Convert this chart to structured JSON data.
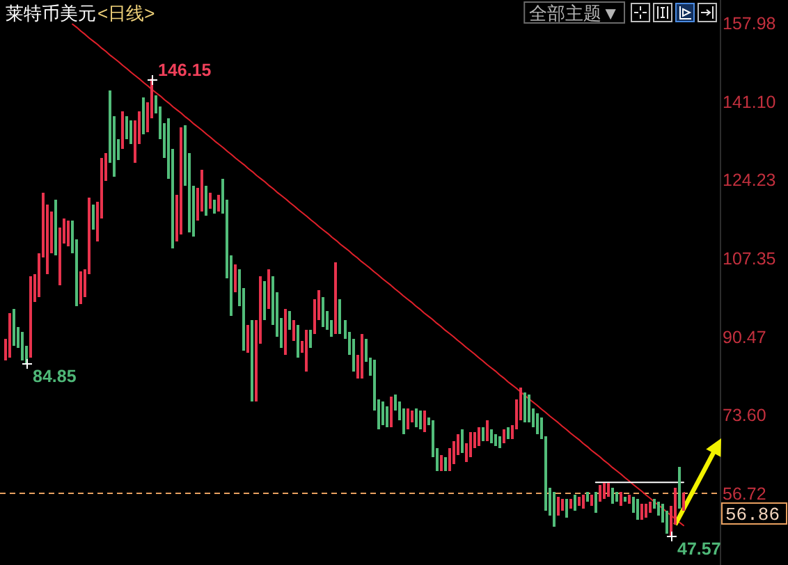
{
  "chart_data": {
    "type": "candlestick",
    "title": "莱特币美元",
    "subtitle": "<日线>",
    "categories": [
      null,
      null,
      null,
      null,
      null,
      null,
      null,
      null,
      null,
      null,
      null,
      null,
      null,
      null,
      null,
      null,
      null,
      null,
      null,
      null,
      null,
      null,
      null,
      null,
      null,
      null,
      null,
      null,
      null,
      null,
      null,
      null,
      null,
      null,
      null,
      null,
      null,
      null,
      null,
      null,
      null,
      null,
      null,
      null,
      null,
      null,
      null,
      null,
      null,
      null,
      null,
      null,
      null,
      null,
      null,
      null,
      null,
      null,
      null,
      null,
      null,
      null,
      null,
      null,
      null,
      null,
      null,
      null,
      null,
      null,
      null,
      null,
      null,
      null,
      null,
      null,
      null,
      null,
      null,
      null,
      null,
      null,
      null,
      null,
      null,
      null,
      null,
      null,
      null,
      null,
      null,
      null,
      null,
      null,
      null,
      null,
      null,
      null,
      null,
      null,
      null,
      null,
      null,
      null,
      null,
      null,
      null,
      null,
      null,
      null,
      null,
      null,
      null,
      null,
      null,
      null,
      null,
      null,
      null,
      null,
      null,
      null,
      null,
      null,
      null,
      null,
      null,
      null,
      null,
      null,
      null,
      null,
      null,
      null,
      null,
      null,
      null,
      null,
      null,
      null,
      null,
      null,
      null,
      null,
      null,
      null,
      null,
      null,
      null,
      null,
      null,
      null,
      null,
      null,
      null,
      null,
      null,
      null,
      null,
      null,
      null,
      null,
      null
    ],
    "ohlc": [
      [
        85.5,
        90.1,
        85.5,
        90.1
      ],
      [
        86,
        95.6,
        86,
        95.6
      ],
      [
        96.6,
        96.6,
        88.6,
        88.6
      ],
      [
        92.6,
        92.6,
        88.1,
        88.1
      ],
      [
        91.6,
        91.6,
        85.5,
        85.5
      ],
      [
        88.6,
        88.6,
        84.85,
        84.85
      ],
      [
        86.1,
        103.6,
        86.1,
        103.6
      ],
      [
        98.1,
        104.1,
        98.1,
        104.1
      ],
      [
        99.1,
        108.6,
        99.1,
        108.6
      ],
      [
        107.6,
        121.6,
        107.6,
        121.6
      ],
      [
        104.1,
        119.1,
        104.1,
        119.1
      ],
      [
        108.6,
        117.6,
        108.6,
        117.6
      ],
      [
        120.1,
        120.1,
        108.1,
        108.1
      ],
      [
        101.6,
        114.1,
        101.6,
        114.1
      ],
      [
        110.6,
        116.1,
        110.6,
        116.1
      ],
      [
        110.1,
        115.6,
        110.1,
        115.6
      ],
      [
        115.6,
        115.6,
        108.6,
        108.6
      ],
      [
        111.6,
        111.6,
        97.1,
        97.1
      ],
      [
        97.6,
        104.6,
        97.6,
        104.6
      ],
      [
        99.1,
        105.1,
        99.1,
        105.1
      ],
      [
        104.1,
        120.6,
        104.1,
        120.6
      ],
      [
        119.1,
        119.1,
        113.6,
        113.6
      ],
      [
        111.1,
        119.6,
        111.1,
        119.6
      ],
      [
        116.1,
        129.1,
        116.1,
        129.1
      ],
      [
        124.1,
        130.1,
        124.1,
        130.1
      ],
      [
        143.6,
        143.6,
        128.1,
        128.1
      ],
      [
        138.1,
        138.1,
        125.1,
        125.1
      ],
      [
        133.1,
        133.1,
        128.6,
        128.6
      ],
      [
        131.1,
        139.1,
        131.1,
        139.1
      ],
      [
        138.1,
        138.1,
        133.1,
        133.1
      ],
      [
        137.1,
        137.1,
        132.1,
        132.1
      ],
      [
        128.1,
        137.1,
        128.1,
        137.1
      ],
      [
        132.1,
        139.1,
        132.1,
        139.1
      ],
      [
        142.1,
        142.1,
        134.1,
        134.1
      ],
      [
        134.6,
        141.1,
        134.6,
        141.1
      ],
      [
        137.6,
        146.15,
        137.6,
        146.15
      ],
      [
        142.6,
        142.6,
        138.6,
        138.6
      ],
      [
        140.1,
        140.1,
        133.1,
        133.1
      ],
      [
        136.6,
        136.6,
        129.1,
        129.1
      ],
      [
        137.6,
        137.6,
        124.6,
        124.6
      ],
      [
        131.1,
        131.1,
        109.6,
        109.6
      ],
      [
        111.1,
        121.1,
        111.1,
        121.1
      ],
      [
        112.6,
        135.6,
        112.6,
        135.6
      ],
      [
        136.1,
        136.1,
        123.1,
        123.1
      ],
      [
        130.1,
        130.1,
        113.1,
        113.1
      ],
      [
        123.1,
        123.1,
        112.1,
        112.1
      ],
      [
        115.6,
        122.6,
        115.6,
        122.6
      ],
      [
        117.6,
        126.6,
        117.6,
        126.6
      ],
      [
        123.1,
        123.1,
        116.6,
        116.6
      ],
      [
        118.1,
        121.6,
        118.1,
        121.6
      ],
      [
        120.1,
        120.1,
        117.1,
        117.1
      ],
      [
        117.6,
        121.1,
        117.6,
        121.1
      ],
      [
        124.6,
        124.6,
        117.1,
        117.1
      ],
      [
        120.1,
        120.1,
        103.1,
        103.1
      ],
      [
        108.1,
        108.1,
        95.1,
        95.1
      ],
      [
        100.1,
        106.1,
        100.1,
        106.1
      ],
      [
        105.1,
        105.1,
        97.1,
        97.1
      ],
      [
        101.1,
        101.1,
        87.6,
        87.6
      ],
      [
        87.1,
        93.1,
        87.1,
        93.1
      ],
      [
        94.1,
        94.1,
        76.6,
        76.6
      ],
      [
        76.6,
        94.1,
        76.6,
        94.1
      ],
      [
        89.1,
        103.6,
        89.1,
        103.6
      ],
      [
        102.6,
        102.6,
        94.1,
        94.1
      ],
      [
        96.6,
        105.1,
        96.6,
        105.1
      ],
      [
        103.6,
        103.6,
        93.1,
        93.1
      ],
      [
        100.1,
        100.1,
        90.6,
        90.6
      ],
      [
        94.6,
        94.6,
        88.1,
        88.1
      ],
      [
        86.6,
        96.6,
        86.6,
        96.6
      ],
      [
        96.1,
        96.1,
        92.1,
        92.1
      ],
      [
        89.6,
        94.1,
        89.6,
        94.1
      ],
      [
        93.1,
        93.1,
        86.1,
        86.1
      ],
      [
        87.1,
        89.6,
        87.1,
        89.6
      ],
      [
        83.1,
        92.1,
        83.1,
        92.1
      ],
      [
        92.1,
        92.1,
        88.1,
        88.1
      ],
      [
        91.1,
        98.6,
        91.1,
        98.6
      ],
      [
        94.1,
        100.6,
        94.1,
        100.6
      ],
      [
        99.1,
        99.1,
        92.6,
        92.6
      ],
      [
        96.1,
        96.1,
        92.1,
        92.1
      ],
      [
        94.1,
        94.1,
        90.6,
        90.6
      ],
      [
        91.1,
        106.6,
        91.1,
        106.6
      ],
      [
        98.6,
        98.6,
        91.1,
        91.1
      ],
      [
        94.1,
        94.1,
        90.1,
        90.1
      ],
      [
        91.6,
        91.6,
        86.6,
        86.6
      ],
      [
        90.1,
        90.1,
        83.1,
        83.1
      ],
      [
        81.6,
        86.6,
        81.6,
        86.6
      ],
      [
        81.6,
        91.1,
        81.6,
        91.1
      ],
      [
        90.1,
        90.1,
        85.1,
        85.1
      ],
      [
        86.1,
        86.1,
        82.1,
        82.1
      ],
      [
        85.6,
        85.6,
        74.6,
        74.6
      ],
      [
        77.1,
        77.1,
        70.6,
        70.6
      ],
      [
        76.6,
        76.6,
        71.6,
        71.6
      ],
      [
        75.6,
        75.6,
        71.1,
        71.1
      ],
      [
        71.1,
        77.6,
        71.1,
        77.6
      ],
      [
        78.1,
        78.1,
        74.6,
        74.6
      ],
      [
        76.6,
        76.6,
        72.6,
        72.6
      ],
      [
        75.1,
        75.1,
        69.6,
        69.6
      ],
      [
        70.6,
        75.1,
        70.6,
        75.1
      ],
      [
        72.1,
        74.6,
        72.1,
        74.6
      ],
      [
        75.1,
        75.1,
        71.1,
        71.1
      ],
      [
        74.6,
        74.6,
        70.6,
        70.6
      ],
      [
        70.1,
        74.6,
        70.1,
        74.6
      ],
      [
        73.1,
        73.1,
        71.6,
        71.6
      ],
      [
        72.6,
        72.6,
        64.6,
        64.6
      ],
      [
        66.6,
        66.6,
        61.6,
        61.6
      ],
      [
        61.6,
        65.1,
        61.6,
        65.1
      ],
      [
        64.6,
        64.6,
        61.6,
        61.6
      ],
      [
        61.6,
        66.6,
        61.6,
        66.6
      ],
      [
        63.1,
        68.1,
        63.1,
        68.1
      ],
      [
        65.1,
        69.6,
        65.1,
        69.6
      ],
      [
        70.6,
        70.6,
        65.6,
        65.6
      ],
      [
        63.6,
        67.6,
        63.6,
        67.6
      ],
      [
        64.6,
        70.1,
        64.6,
        70.1
      ],
      [
        66.6,
        70.1,
        66.6,
        70.1
      ],
      [
        67.1,
        71.1,
        67.1,
        71.1
      ],
      [
        71.1,
        71.1,
        68.1,
        68.1
      ],
      [
        68.1,
        72.6,
        68.1,
        72.6
      ],
      [
        70.6,
        70.6,
        67.6,
        67.6
      ],
      [
        69.6,
        69.6,
        67.1,
        67.1
      ],
      [
        69.1,
        69.1,
        66.6,
        66.6
      ],
      [
        67.6,
        70.6,
        67.6,
        70.6
      ],
      [
        71.1,
        71.1,
        68.6,
        68.6
      ],
      [
        68.6,
        71.6,
        68.6,
        71.6
      ],
      [
        70.6,
        77.1,
        70.6,
        77.1
      ],
      [
        72.6,
        79.6,
        72.6,
        79.6
      ],
      [
        78.6,
        78.6,
        72.1,
        72.1
      ],
      [
        78.1,
        78.1,
        72.1,
        72.1
      ],
      [
        75.1,
        75.1,
        71.1,
        71.1
      ],
      [
        74.1,
        74.1,
        69.6,
        69.6
      ],
      [
        73.1,
        73.1,
        68.6,
        68.6
      ],
      [
        69.1,
        69.1,
        53.1,
        53.1
      ],
      [
        58.1,
        58.1,
        52.1,
        52.1
      ],
      [
        57.1,
        57.1,
        49.6,
        49.6
      ],
      [
        52.1,
        56.1,
        52.1,
        56.1
      ],
      [
        53.1,
        55.6,
        53.1,
        55.6
      ],
      [
        55.6,
        55.6,
        51.6,
        51.6
      ],
      [
        53.6,
        55.6,
        53.6,
        55.6
      ],
      [
        56.6,
        56.6,
        53.1,
        53.1
      ],
      [
        54.1,
        56.1,
        54.1,
        56.1
      ],
      [
        53.6,
        56.6,
        53.6,
        56.6
      ],
      [
        57.1,
        57.1,
        55.1,
        55.1
      ],
      [
        54.1,
        56.6,
        54.1,
        56.6
      ],
      [
        57.1,
        57.1,
        52.6,
        52.6
      ],
      [
        55.1,
        58.6,
        55.1,
        58.6
      ],
      [
        55.6,
        59.1,
        55.6,
        59.1
      ],
      [
        56.1,
        59.1,
        56.1,
        59.1
      ],
      [
        58.1,
        58.1,
        54.6,
        54.6
      ],
      [
        57.1,
        57.1,
        55.1,
        55.1
      ],
      [
        54.1,
        57.1,
        54.1,
        57.1
      ],
      [
        56.1,
        56.1,
        55.1,
        55.1
      ],
      [
        54.6,
        56.6,
        54.6,
        56.6
      ],
      [
        56.1,
        56.1,
        52.6,
        52.6
      ],
      [
        55.6,
        55.6,
        51.1,
        51.1
      ],
      [
        51.1,
        54.6,
        51.1,
        54.6
      ],
      [
        51.6,
        54.6,
        51.6,
        54.6
      ],
      [
        52.6,
        55.1,
        52.6,
        55.1
      ],
      [
        55.6,
        55.6,
        53.6,
        53.6
      ],
      [
        55.1,
        55.1,
        52.1,
        52.1
      ],
      [
        54.6,
        54.6,
        50.6,
        50.6
      ],
      [
        53.1,
        53.1,
        48.1,
        48.1
      ],
      [
        47.57,
        54.1,
        47.57,
        54.1
      ],
      [
        50.1,
        58.1,
        50.1,
        58.1
      ],
      [
        62.6,
        62.6,
        53.6,
        53.6
      ],
      [
        53.1,
        57.1,
        53.1,
        56.86
      ]
    ],
    "colors": [
      "#e8334d",
      "#e8334d",
      "#52bd7a",
      "#52bd7a",
      "#52bd7a",
      "#52bd7a",
      "#e8334d",
      "#e8334d",
      "#e8334d",
      "#e8334d",
      "#e8334d",
      "#e8334d",
      "#52bd7a",
      "#e8334d",
      "#e8334d",
      "#e8334d",
      "#52bd7a",
      "#52bd7a",
      "#e8334d",
      "#e8334d",
      "#e8334d",
      "#52bd7a",
      "#e8334d",
      "#e8334d",
      "#e8334d",
      "#52bd7a",
      "#52bd7a",
      "#52bd7a",
      "#e8334d",
      "#52bd7a",
      "#52bd7a",
      "#e8334d",
      "#e8334d",
      "#52bd7a",
      "#e8334d",
      "#e8334d",
      "#52bd7a",
      "#52bd7a",
      "#52bd7a",
      "#52bd7a",
      "#52bd7a",
      "#e8334d",
      "#e8334d",
      "#52bd7a",
      "#52bd7a",
      "#52bd7a",
      "#e8334d",
      "#e8334d",
      "#52bd7a",
      "#e8334d",
      "#52bd7a",
      "#e8334d",
      "#52bd7a",
      "#52bd7a",
      "#52bd7a",
      "#e8334d",
      "#52bd7a",
      "#52bd7a",
      "#e8334d",
      "#52bd7a",
      "#e8334d",
      "#e8334d",
      "#52bd7a",
      "#e8334d",
      "#52bd7a",
      "#52bd7a",
      "#52bd7a",
      "#e8334d",
      "#52bd7a",
      "#e8334d",
      "#52bd7a",
      "#e8334d",
      "#e8334d",
      "#52bd7a",
      "#e8334d",
      "#e8334d",
      "#52bd7a",
      "#52bd7a",
      "#52bd7a",
      "#e8334d",
      "#52bd7a",
      "#52bd7a",
      "#52bd7a",
      "#52bd7a",
      "#e8334d",
      "#e8334d",
      "#52bd7a",
      "#52bd7a",
      "#52bd7a",
      "#52bd7a",
      "#52bd7a",
      "#52bd7a",
      "#e8334d",
      "#52bd7a",
      "#52bd7a",
      "#52bd7a",
      "#e8334d",
      "#e8334d",
      "#52bd7a",
      "#52bd7a",
      "#e8334d",
      "#52bd7a",
      "#52bd7a",
      "#52bd7a",
      "#e8334d",
      "#52bd7a",
      "#e8334d",
      "#e8334d",
      "#e8334d",
      "#52bd7a",
      "#e8334d",
      "#e8334d",
      "#e8334d",
      "#e8334d",
      "#52bd7a",
      "#e8334d",
      "#52bd7a",
      "#52bd7a",
      "#52bd7a",
      "#e8334d",
      "#52bd7a",
      "#e8334d",
      "#e8334d",
      "#e8334d",
      "#52bd7a",
      "#52bd7a",
      "#52bd7a",
      "#52bd7a",
      "#52bd7a",
      "#52bd7a",
      "#52bd7a",
      "#52bd7a",
      "#e8334d",
      "#e8334d",
      "#52bd7a",
      "#e8334d",
      "#52bd7a",
      "#e8334d",
      "#e8334d",
      "#52bd7a",
      "#e8334d",
      "#52bd7a",
      "#e8334d",
      "#e8334d",
      "#e8334d",
      "#52bd7a",
      "#52bd7a",
      "#e8334d",
      "#52bd7a",
      "#e8334d",
      "#52bd7a",
      "#52bd7a",
      "#e8334d",
      "#e8334d",
      "#e8334d",
      "#52bd7a",
      "#52bd7a",
      "#52bd7a",
      "#52bd7a",
      "#e8334d",
      "#e8334d",
      "#52bd7a",
      "#e8334d"
    ],
    "series": [
      {
        "type": "line",
        "color": "#e0202a",
        "values": [
          null,
          null,
          null,
          null,
          null,
          null,
          null,
          null,
          null,
          null,
          null,
          null,
          null,
          null,
          null,
          null,
          157.9,
          157.2,
          156.4,
          155.7,
          154.9,
          154.2,
          153.5,
          152.7,
          152.0,
          151.2,
          150.5,
          149.8,
          149.0,
          148.3,
          147.5,
          146.8,
          146.1,
          145.3,
          144.6,
          143.8,
          143.1,
          142.4,
          141.6,
          140.9,
          140.1,
          139.4,
          138.7,
          137.9,
          137.2,
          136.4,
          135.7,
          135.0,
          134.2,
          133.5,
          132.7,
          132.0,
          131.3,
          130.5,
          129.8,
          129.0,
          128.3,
          127.6,
          126.8,
          126.1,
          125.3,
          124.6,
          123.9,
          123.1,
          122.4,
          121.6,
          120.9,
          120.2,
          119.4,
          118.7,
          117.9,
          117.2,
          116.5,
          115.7,
          115.0,
          114.2,
          113.5,
          112.8,
          112.0,
          111.3,
          110.5,
          109.8,
          109.1,
          108.3,
          107.6,
          106.8,
          106.1,
          105.4,
          104.6,
          103.9,
          103.1,
          102.4,
          101.7,
          100.9,
          100.2,
          99.4,
          98.7,
          98.0,
          97.2,
          96.5,
          95.7,
          95.0,
          94.3,
          93.5,
          92.8,
          92.0,
          91.3,
          90.6,
          89.8,
          89.1,
          88.3,
          87.6,
          86.9,
          86.1,
          85.4,
          84.6,
          83.9,
          83.2,
          82.4,
          81.7,
          80.9,
          80.2,
          79.5,
          78.7,
          78.0,
          77.2,
          76.5,
          75.8,
          75.0,
          74.3,
          73.5,
          72.8,
          72.1,
          71.3,
          70.6,
          69.8,
          69.1,
          68.4,
          67.6,
          66.9,
          66.1,
          65.4,
          64.7,
          63.9,
          63.2,
          62.4,
          61.7,
          61.0,
          60.2,
          59.5,
          58.7,
          58.0,
          57.3,
          56.5,
          55.8,
          55.0,
          54.3,
          53.6,
          52.8,
          52.1,
          51.3,
          50.6,
          49.9
        ]
      },
      {
        "type": "line",
        "color": "#ffffff",
        "values": [
          null,
          null,
          null,
          null,
          null,
          null,
          null,
          null,
          null,
          null,
          null,
          null,
          null,
          null,
          null,
          null,
          null,
          null,
          null,
          null,
          null,
          null,
          null,
          null,
          null,
          null,
          null,
          null,
          null,
          null,
          null,
          null,
          null,
          null,
          null,
          null,
          null,
          null,
          null,
          null,
          null,
          null,
          null,
          null,
          null,
          null,
          null,
          null,
          null,
          null,
          null,
          null,
          null,
          null,
          null,
          null,
          null,
          null,
          null,
          null,
          null,
          null,
          null,
          null,
          null,
          null,
          null,
          null,
          null,
          null,
          null,
          null,
          null,
          null,
          null,
          null,
          null,
          null,
          null,
          null,
          null,
          null,
          null,
          null,
          null,
          null,
          null,
          null,
          null,
          null,
          null,
          null,
          null,
          null,
          null,
          null,
          null,
          null,
          null,
          null,
          null,
          null,
          null,
          null,
          null,
          null,
          null,
          null,
          null,
          null,
          null,
          null,
          null,
          null,
          null,
          null,
          null,
          null,
          null,
          null,
          null,
          null,
          null,
          null,
          null,
          null,
          null,
          null,
          null,
          null,
          null,
          null,
          null,
          null,
          null,
          null,
          null,
          null,
          null,
          null,
          null,
          59.2,
          59.2,
          59.2,
          59.2,
          59.2,
          59.2,
          59.2,
          59.2,
          59.2,
          59.2,
          59.2,
          59.2,
          59.2,
          59.2,
          59.2,
          59.2,
          59.2,
          59.2,
          59.2,
          59.2,
          59.2,
          59.2
        ]
      }
    ],
    "ylim": [
      41.4,
      163.1
    ],
    "yticks": [
      157.98,
      {
        "value": 141.1,
        "label": "141.10"
      },
      124.23,
      107.35,
      90.47,
      {
        "value": 73.6,
        "label": "73.60"
      },
      56.72
    ],
    "tick_labels": "y",
    "ref_lines": [
      {
        "axis": "y",
        "value": 56.86,
        "label": "56.86",
        "color": "#e8a060",
        "line_style": "dashed"
      }
    ],
    "annotations": [
      "146.15",
      "84.85",
      "47.57",
      "全部主题▼"
    ]
  }
}
